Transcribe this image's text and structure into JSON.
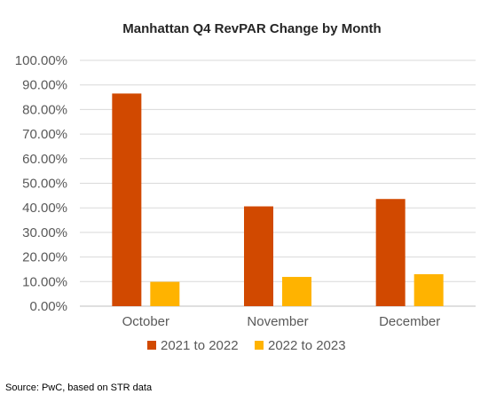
{
  "chart_data": {
    "type": "bar",
    "title": "Manhattan Q4 RevPAR Change by Month",
    "categories": [
      "October",
      "November",
      "December"
    ],
    "series": [
      {
        "name": "2021 to 2022",
        "color": "#D14900",
        "values": [
          86.5,
          40.6,
          43.6
        ]
      },
      {
        "name": "2022 to 2023",
        "color": "#FFB300",
        "values": [
          9.9,
          11.9,
          13.0
        ]
      }
    ],
    "ylim": [
      0,
      100
    ],
    "ytick_step": 10,
    "ytick_labels": [
      "0.00%",
      "10.00%",
      "20.00%",
      "30.00%",
      "40.00%",
      "50.00%",
      "60.00%",
      "70.00%",
      "80.00%",
      "90.00%",
      "100.00%"
    ],
    "grid": true,
    "legend": "bottom",
    "source": "Source: PwC, based on STR data"
  }
}
